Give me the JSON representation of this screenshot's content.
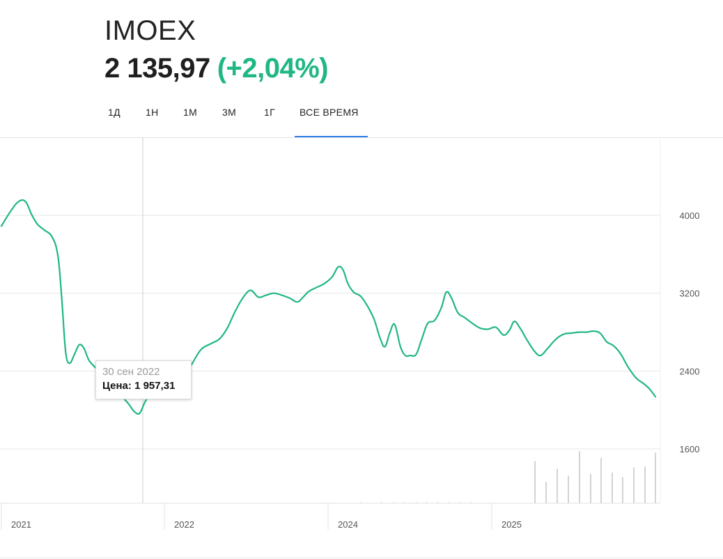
{
  "header": {
    "ticker": "IMOEX",
    "price": "2 135,97",
    "change": "(+2,04%)"
  },
  "tabs": [
    {
      "label": "1Д"
    },
    {
      "label": "1Н"
    },
    {
      "label": "1М"
    },
    {
      "label": "3М"
    },
    {
      "label": "1Г"
    },
    {
      "label": "ВСЕ ВРЕМЯ",
      "active": true
    }
  ],
  "tooltip": {
    "date": "30 сен 2022",
    "label": "Цена:",
    "value": "1 957,31"
  },
  "colors": {
    "line": "#1fb782",
    "grid": "#e6e6e6",
    "crosshair": "#cccccc",
    "volume": "#d3d3d3",
    "accent": "#2c7be5",
    "positive": "#1fb782"
  },
  "chart_data": {
    "type": "line",
    "title": "",
    "xlabel": "",
    "ylabel": "",
    "x_ticks": [
      "2021",
      "2022",
      "2024",
      "2025"
    ],
    "y_ticks": [
      4000,
      3200,
      2400,
      1600
    ],
    "ylim": [
      1470,
      4490
    ],
    "grid": "horizontal",
    "legend": "none",
    "series": [
      {
        "values": [
          [
            0.0,
            3890
          ],
          [
            1.0,
            4050
          ],
          [
            1.8,
            4145
          ],
          [
            2.5,
            4140
          ],
          [
            3.1,
            4010
          ],
          [
            3.7,
            3910
          ],
          [
            4.4,
            3850
          ],
          [
            5.2,
            3780
          ],
          [
            5.8,
            3590
          ],
          [
            6.2,
            3150
          ],
          [
            6.6,
            2600
          ],
          [
            7.0,
            2480
          ],
          [
            7.5,
            2570
          ],
          [
            8.0,
            2670
          ],
          [
            8.5,
            2630
          ],
          [
            9.0,
            2510
          ],
          [
            9.8,
            2420
          ],
          [
            10.6,
            2330
          ],
          [
            11.4,
            2250
          ],
          [
            12.2,
            2160
          ],
          [
            13.0,
            2070
          ],
          [
            13.6,
            1990
          ],
          [
            14.0,
            1960
          ],
          [
            14.3,
            1980
          ],
          [
            14.8,
            2090
          ],
          [
            15.5,
            2190
          ],
          [
            16.2,
            2220
          ],
          [
            17.0,
            2200
          ],
          [
            17.8,
            2220
          ],
          [
            18.6,
            2320
          ],
          [
            19.5,
            2460
          ],
          [
            20.5,
            2620
          ],
          [
            21.5,
            2680
          ],
          [
            22.4,
            2730
          ],
          [
            23.2,
            2840
          ],
          [
            24.0,
            3010
          ],
          [
            24.8,
            3150
          ],
          [
            25.6,
            3230
          ],
          [
            26.4,
            3160
          ],
          [
            27.2,
            3180
          ],
          [
            28.0,
            3200
          ],
          [
            28.8,
            3180
          ],
          [
            29.6,
            3150
          ],
          [
            30.4,
            3110
          ],
          [
            31.0,
            3160
          ],
          [
            31.6,
            3220
          ],
          [
            32.4,
            3260
          ],
          [
            33.2,
            3300
          ],
          [
            34.0,
            3370
          ],
          [
            34.6,
            3470
          ],
          [
            35.1,
            3440
          ],
          [
            35.6,
            3300
          ],
          [
            36.2,
            3210
          ],
          [
            36.9,
            3170
          ],
          [
            37.6,
            3070
          ],
          [
            38.3,
            2930
          ],
          [
            38.9,
            2740
          ],
          [
            39.4,
            2650
          ],
          [
            39.9,
            2790
          ],
          [
            40.4,
            2880
          ],
          [
            41.0,
            2650
          ],
          [
            41.5,
            2560
          ],
          [
            42.0,
            2560
          ],
          [
            42.6,
            2570
          ],
          [
            43.2,
            2730
          ],
          [
            43.8,
            2890
          ],
          [
            44.5,
            2920
          ],
          [
            45.2,
            3050
          ],
          [
            45.7,
            3210
          ],
          [
            46.2,
            3160
          ],
          [
            46.9,
            3000
          ],
          [
            47.6,
            2950
          ],
          [
            48.4,
            2890
          ],
          [
            49.2,
            2840
          ],
          [
            50.0,
            2830
          ],
          [
            50.8,
            2850
          ],
          [
            51.6,
            2770
          ],
          [
            52.2,
            2820
          ],
          [
            52.7,
            2910
          ],
          [
            53.3,
            2840
          ],
          [
            54.0,
            2720
          ],
          [
            54.8,
            2600
          ],
          [
            55.4,
            2560
          ],
          [
            56.1,
            2630
          ],
          [
            57.0,
            2730
          ],
          [
            57.8,
            2780
          ],
          [
            58.6,
            2790
          ],
          [
            59.4,
            2800
          ],
          [
            60.2,
            2800
          ],
          [
            60.8,
            2810
          ],
          [
            61.5,
            2790
          ],
          [
            62.2,
            2700
          ],
          [
            62.9,
            2660
          ],
          [
            63.6,
            2580
          ],
          [
            64.4,
            2440
          ],
          [
            65.2,
            2330
          ],
          [
            66.0,
            2270
          ],
          [
            66.6,
            2215
          ],
          [
            67.2,
            2136
          ]
        ]
      }
    ],
    "volume": [
      0.55,
      0.28,
      0.45,
      0.36,
      0.68,
      0.38,
      0.59,
      0.4,
      0.34,
      0.47,
      0.48,
      0.66
    ]
  }
}
